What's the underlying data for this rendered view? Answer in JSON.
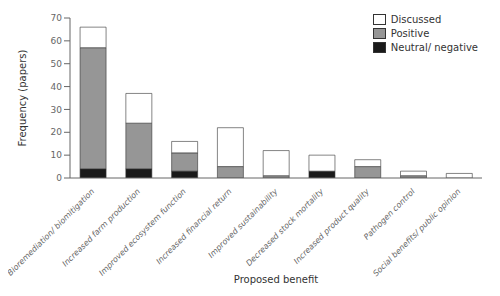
{
  "chart_data": {
    "type": "bar",
    "stacked": true,
    "xlabel": "Proposed benefit",
    "ylabel": "Frequency (papers)",
    "categories": [
      "Bioremediation/ biomitigation",
      "Increased farm production",
      "Improved ecosystem function",
      "Increased financial return",
      "Improved sustainability",
      "Decreased stock mortality",
      "Increased product quality",
      "Pathogen control",
      "Social benefits/ public opinion"
    ],
    "series": [
      {
        "name": "Discussed",
        "color": "#ffffff",
        "values": [
          9,
          13,
          5,
          17,
          11,
          7,
          3,
          2,
          2
        ]
      },
      {
        "name": "Positive",
        "color": "#969696",
        "values": [
          53,
          20,
          8,
          5,
          1,
          0,
          5,
          1,
          0
        ]
      },
      {
        "name": "Neutral/ negative",
        "color": "#1a1a1a",
        "values": [
          4,
          4,
          3,
          0,
          0,
          3,
          0,
          0,
          0
        ]
      }
    ],
    "ylim": [
      0,
      70
    ],
    "yticks": [
      0,
      10,
      20,
      30,
      40,
      50,
      60,
      70
    ],
    "legend": "upper right",
    "grid": false
  }
}
